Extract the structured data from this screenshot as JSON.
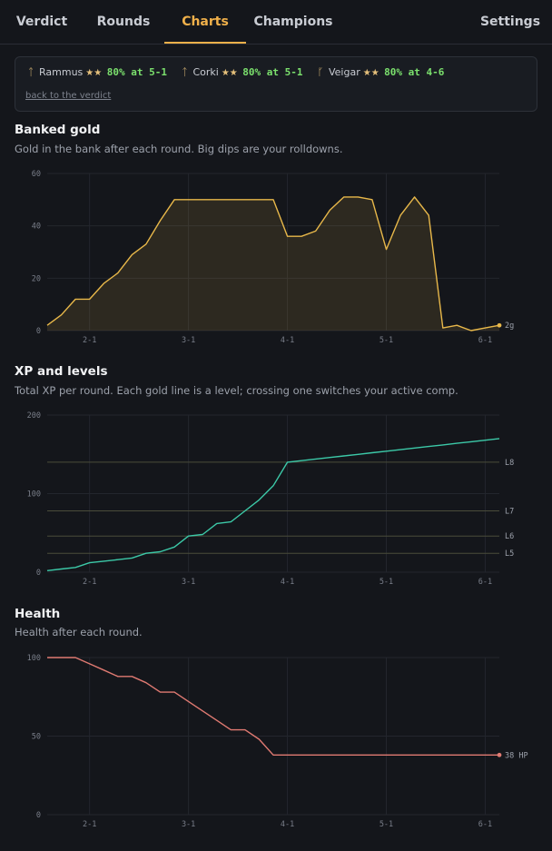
{
  "tabs": [
    {
      "label": "Verdict",
      "active": false
    },
    {
      "label": "Rounds",
      "active": false
    },
    {
      "label": "Charts",
      "active": true
    },
    {
      "label": "Champions",
      "active": false
    },
    {
      "label": "Settings",
      "active": false
    }
  ],
  "champions": [
    {
      "icon": "rammus-icon",
      "glyph": "ᛏ",
      "name": "Rammus",
      "stars": "★★",
      "rate": "80% at 5-1"
    },
    {
      "icon": "corki-icon",
      "glyph": "ᛏ",
      "name": "Corki",
      "stars": "★★",
      "rate": "80% at 5-1"
    },
    {
      "icon": "veigar-icon",
      "glyph": "ᚵ",
      "name": "Veigar",
      "stars": "★★",
      "rate": "80% at 4-6"
    }
  ],
  "back_link": "back to the verdict",
  "colors": {
    "accent": "#f0b04a",
    "gold_line": "#e8b84a",
    "xp_line": "#3cc9a8",
    "health_line": "#e07a72",
    "level_line": "#4a4c3a",
    "stars": "#e5c07b",
    "rate_green": "#7be06d"
  },
  "sections": {
    "gold": {
      "title": "Banked gold",
      "desc": "Gold in the bank after each round. Big dips are your rolldowns."
    },
    "xp": {
      "title": "XP and levels",
      "desc": "Total XP per round. Each gold line is a level; crossing one switches your active comp."
    },
    "health": {
      "title": "Health",
      "desc": "Health after each round."
    }
  },
  "chart_data": [
    {
      "type": "area",
      "x_ticks": [
        "2-1",
        "3-1",
        "4-1",
        "5-1",
        "6-1"
      ],
      "x_tick_index": [
        3,
        10,
        17,
        24,
        31
      ],
      "y_ticks": [
        "0",
        "20",
        "40",
        "60"
      ],
      "ylim": [
        0,
        60
      ],
      "grid": true,
      "values": [
        2,
        6,
        12,
        12,
        18,
        22,
        29,
        33,
        42,
        50,
        50,
        50,
        50,
        50,
        50,
        50,
        50,
        36,
        36,
        38,
        46,
        51,
        51,
        50,
        31,
        44,
        51,
        44,
        1,
        2,
        0,
        1,
        2
      ],
      "end_label": "2g"
    },
    {
      "type": "line",
      "x_ticks": [
        "2-1",
        "3-1",
        "4-1",
        "5-1",
        "6-1"
      ],
      "x_tick_index": [
        3,
        10,
        17,
        24,
        31
      ],
      "y_ticks": [
        "0",
        "100",
        "200"
      ],
      "ylim": [
        0,
        200
      ],
      "grid": true,
      "values": [
        2,
        4,
        6,
        12,
        14,
        16,
        18,
        24,
        26,
        32,
        46,
        48,
        62,
        64,
        78,
        92,
        110,
        140,
        142,
        144,
        146,
        148,
        150,
        152,
        154,
        156,
        158,
        160,
        162,
        164,
        166,
        168,
        170
      ],
      "level_lines": [
        {
          "label": "L8",
          "value": 140
        },
        {
          "label": "L7",
          "value": 78
        },
        {
          "label": "L6",
          "value": 46
        },
        {
          "label": "L5",
          "value": 24
        }
      ]
    },
    {
      "type": "line",
      "x_ticks": [
        "2-1",
        "3-1",
        "4-1",
        "5-1",
        "6-1"
      ],
      "x_tick_index": [
        3,
        10,
        17,
        24,
        31
      ],
      "y_ticks": [
        "0",
        "50",
        "100"
      ],
      "ylim": [
        0,
        100
      ],
      "grid": true,
      "values": [
        100,
        100,
        100,
        96,
        92,
        88,
        88,
        84,
        78,
        78,
        72,
        66,
        60,
        54,
        54,
        48,
        38,
        38,
        38,
        38,
        38,
        38,
        38,
        38,
        38,
        38,
        38,
        38,
        38,
        38,
        38,
        38,
        38
      ],
      "end_label": "38 HP"
    }
  ]
}
